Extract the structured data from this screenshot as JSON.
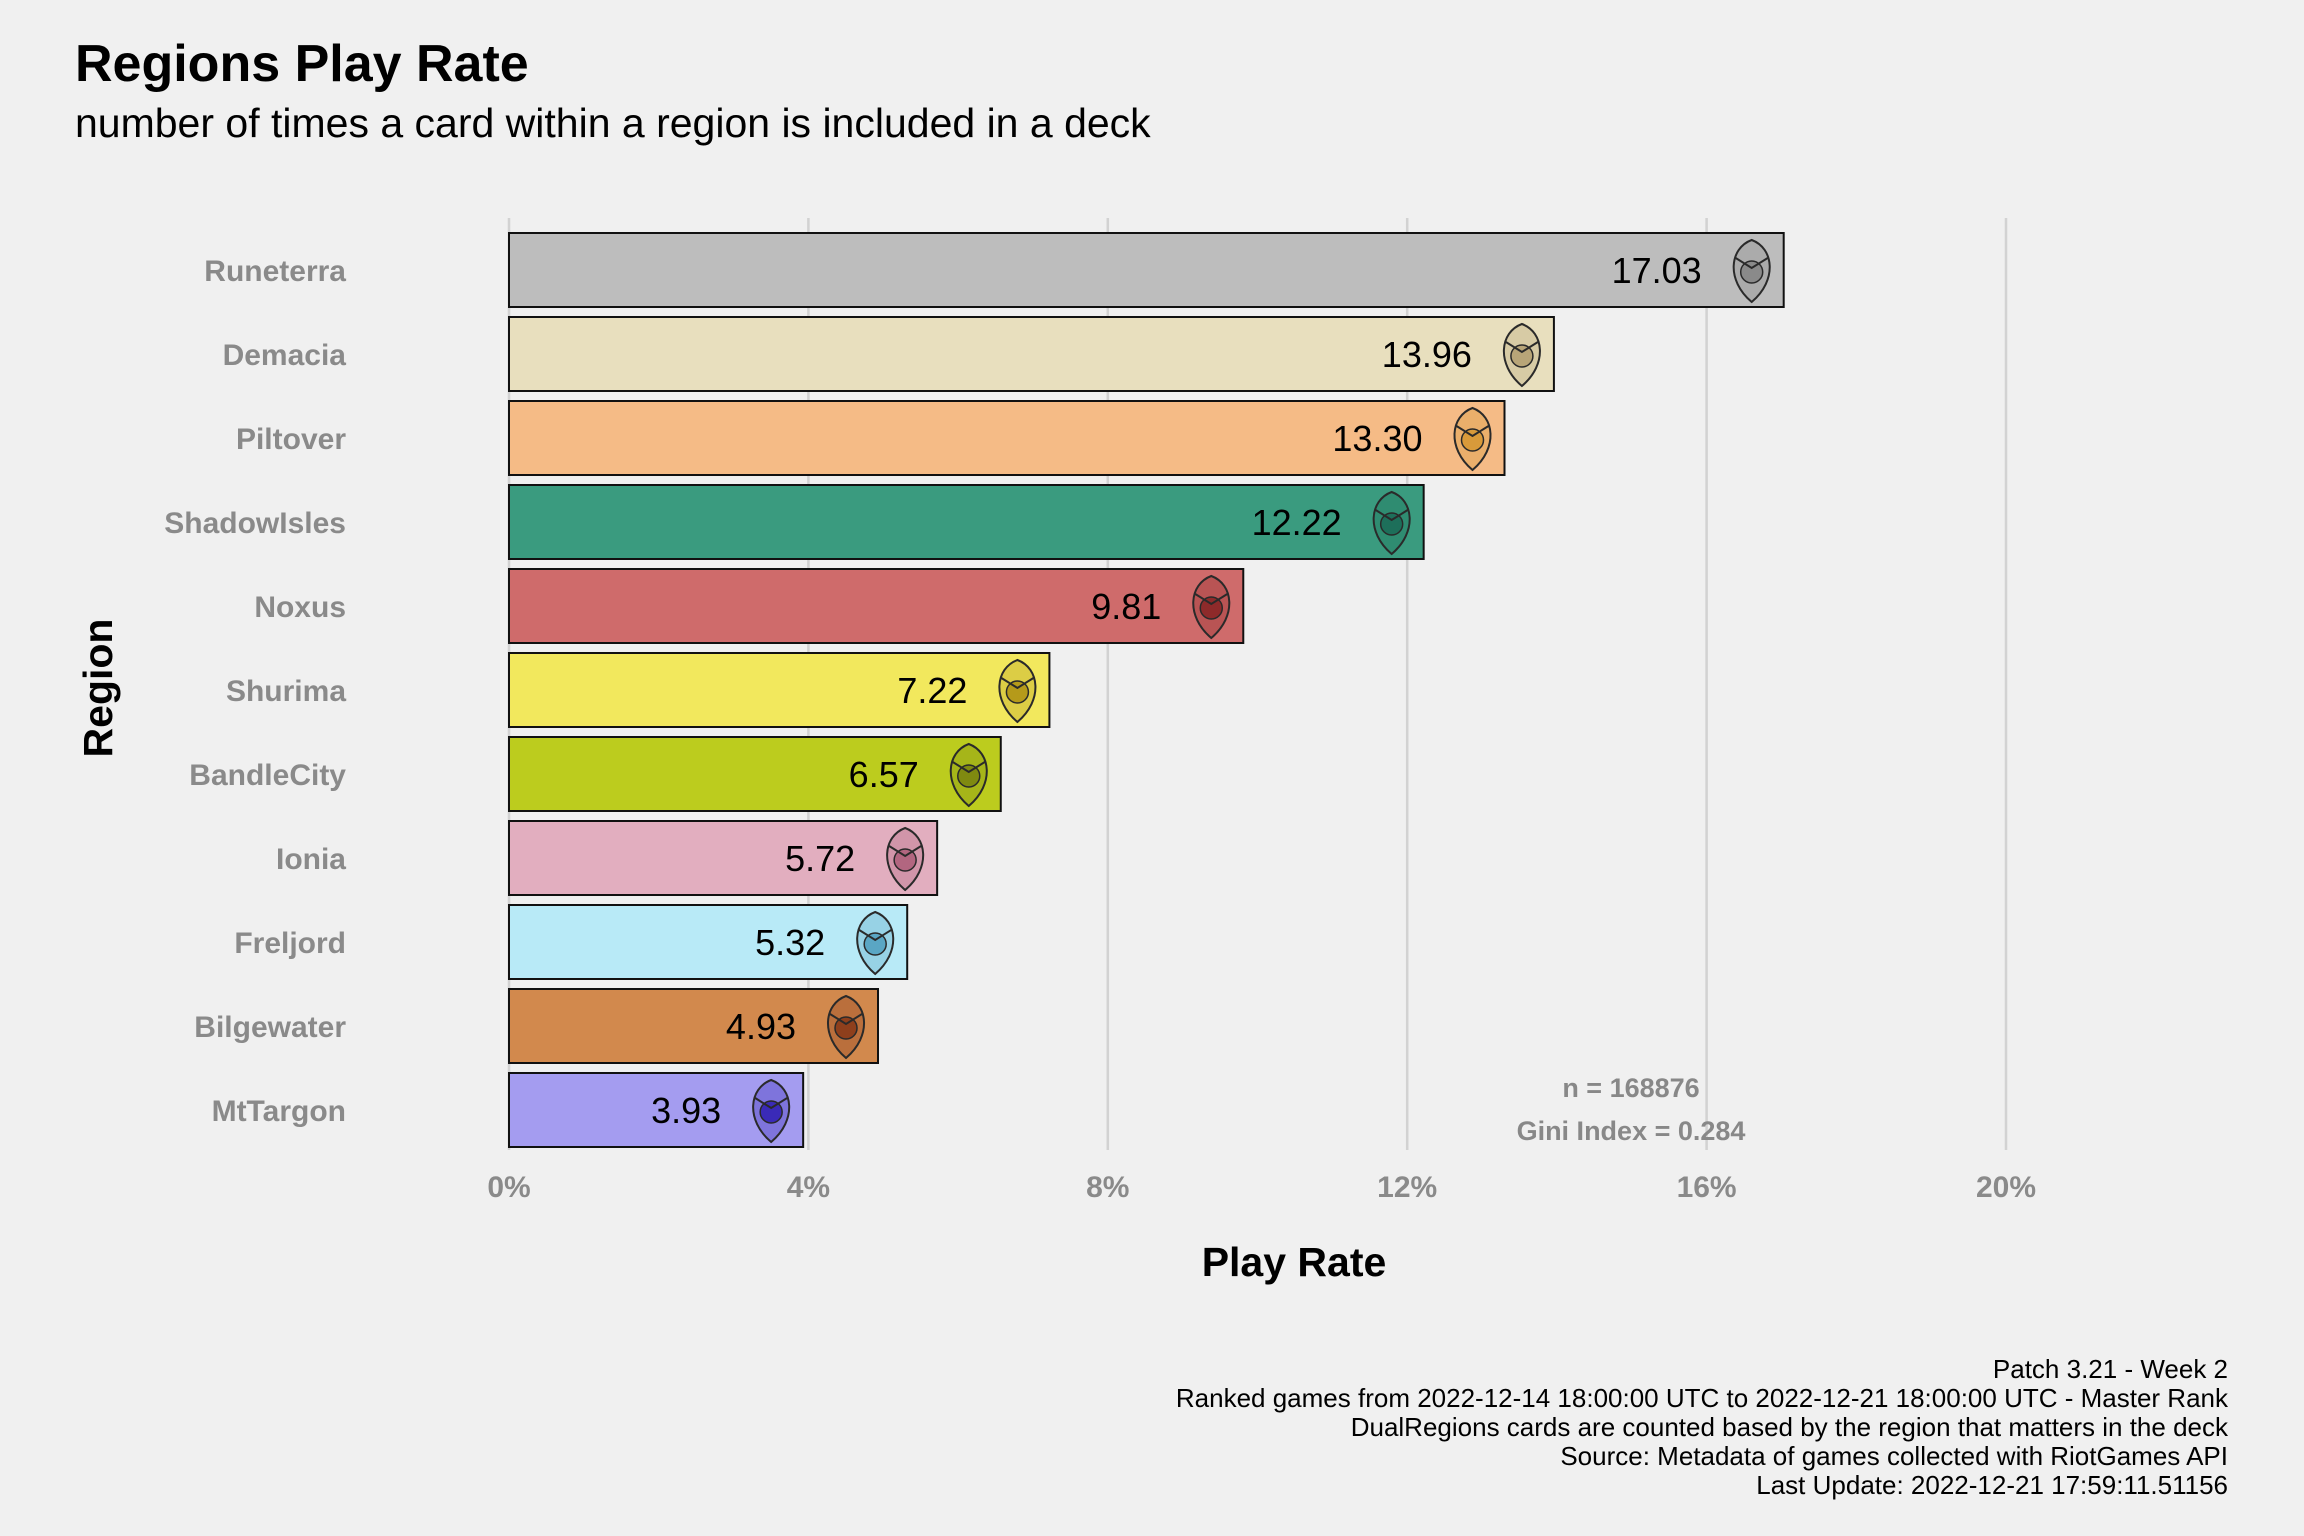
{
  "chart_data": {
    "type": "bar",
    "orientation": "horizontal",
    "title": "Regions Play Rate",
    "subtitle": "number of times a card within a region is included in a deck",
    "xlabel": "Play Rate",
    "ylabel": "Region",
    "xlim": [
      0,
      20
    ],
    "x_ticks": [
      "0%",
      "4%",
      "8%",
      "12%",
      "16%",
      "20%"
    ],
    "grid": "vertical major",
    "categories": [
      "Runeterra",
      "Demacia",
      "Piltover",
      "ShadowIsles",
      "Noxus",
      "Shurima",
      "BandleCity",
      "Ionia",
      "Freljord",
      "Bilgewater",
      "MtTargon"
    ],
    "values": [
      17.03,
      13.96,
      13.3,
      12.22,
      9.81,
      7.22,
      6.57,
      5.72,
      5.32,
      4.93,
      3.93
    ],
    "value_labels": [
      "17.03",
      "13.96",
      "13.30",
      "12.22",
      "9.81",
      "7.22",
      "6.57",
      "5.72",
      "5.32",
      "4.93",
      "3.93"
    ],
    "colors": [
      "#bdbdbd",
      "#e8dfbe",
      "#f5bb86",
      "#3a9b7f",
      "#cf6b6b",
      "#f2e85d",
      "#bccc1e",
      "#e2aebf",
      "#b8eaf7",
      "#d2894d",
      "#a49cf0"
    ],
    "icon_colors": [
      "#8a8a8a",
      "#b8a578",
      "#d89a3a",
      "#1d6f5a",
      "#8e2a2a",
      "#b59a1a",
      "#7f8a10",
      "#b26680",
      "#5aa6c4",
      "#8e3f1c",
      "#3a2ab8"
    ],
    "icons": [
      "runeterra-icon",
      "demacia-icon",
      "piltover-icon",
      "shadowisles-icon",
      "noxus-icon",
      "shurima-icon",
      "bandlecity-icon",
      "ionia-icon",
      "freljord-icon",
      "bilgewater-icon",
      "mttargon-icon"
    ],
    "annotations": [
      "n = 168876",
      "Gini Index = 0.284"
    ]
  },
  "caption": [
    "Patch 3.21 - Week 2",
    "Ranked games from 2022-12-14 18:00:00 UTC to 2022-12-21 18:00:00 UTC - Master Rank",
    "DualRegions cards are counted based by the region that matters in the deck",
    "Source: Metadata of games collected with RiotGames API",
    "Last Update: 2022-12-21 17:59:11.51156"
  ]
}
